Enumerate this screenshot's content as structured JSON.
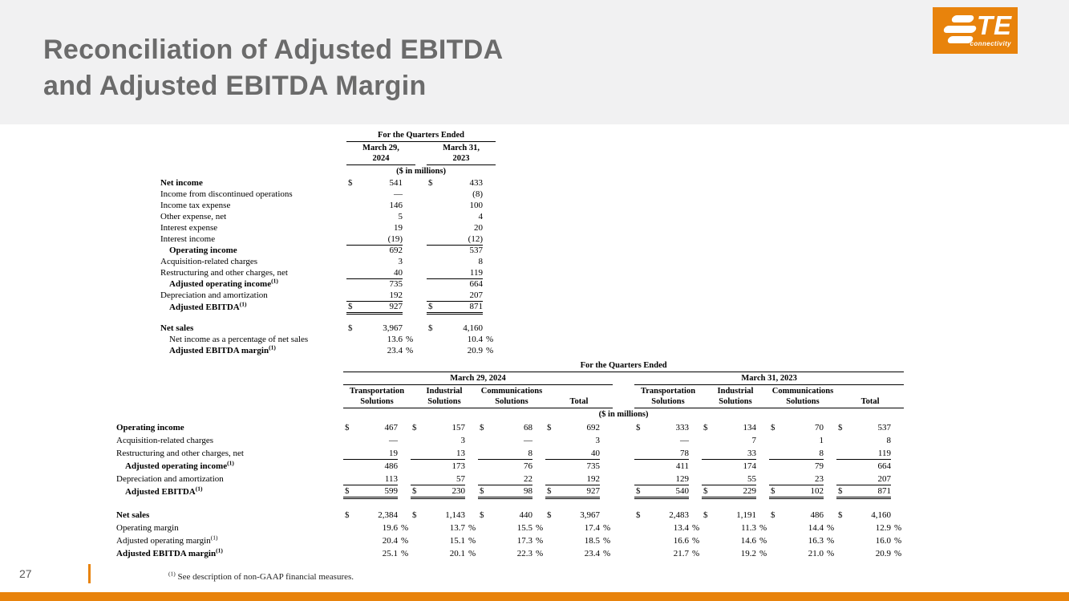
{
  "slide": {
    "title_line1": "Reconciliation of Adjusted EBITDA",
    "title_line2": "and Adjusted EBITDA Margin",
    "page_number": "27",
    "colors": {
      "orange": "#E8830C",
      "header_band": "#F1F1F2",
      "title_gray": "#6B6B6B"
    }
  },
  "logo": {
    "te": "TE",
    "sub": "connectivity"
  },
  "footnote": {
    "sup": "(1)",
    "text": " See description of non-GAAP financial measures."
  },
  "table1": {
    "header": {
      "quarters": "For the Quarters Ended",
      "period1": "March 29,\n2024",
      "period2": "March 31,\n2023",
      "units": "($ in millions)"
    },
    "rows": [
      {
        "label": "Net income",
        "bold": true,
        "dollar": true,
        "values": [
          "541",
          "433"
        ]
      },
      {
        "label": "Income from discontinued operations",
        "values": [
          "—",
          "(8)"
        ]
      },
      {
        "label": "Income tax expense",
        "values": [
          "146",
          "100"
        ]
      },
      {
        "label": "Other expense, net",
        "values": [
          "5",
          "4"
        ]
      },
      {
        "label": "Interest expense",
        "values": [
          "19",
          "20"
        ]
      },
      {
        "label": "Interest income",
        "underline": true,
        "values": [
          "(19)",
          "(12)"
        ]
      },
      {
        "label": "Operating income",
        "bold": true,
        "indent": true,
        "values": [
          "692",
          "537"
        ]
      },
      {
        "label": "Acquisition-related charges",
        "values": [
          "3",
          "8"
        ]
      },
      {
        "label": "Restructuring and other charges, net",
        "underline": true,
        "values": [
          "40",
          "119"
        ]
      },
      {
        "label": "Adjusted operating income",
        "sup": "(1)",
        "bold": true,
        "indent": true,
        "values": [
          "735",
          "664"
        ]
      },
      {
        "label": "Depreciation and amortization",
        "underline": true,
        "values": [
          "192",
          "207"
        ]
      },
      {
        "label": "Adjusted EBITDA",
        "sup": "(1)",
        "bold": true,
        "indent": true,
        "dollar": true,
        "double": true,
        "values": [
          "927",
          "871"
        ]
      },
      {
        "spacer": true
      },
      {
        "label": "Net sales",
        "bold": true,
        "dollar": true,
        "values": [
          "3,967",
          "4,160"
        ]
      },
      {
        "label": "Net income as a percentage of net sales",
        "indent": true,
        "pct": true,
        "values": [
          "13.6",
          "10.4"
        ]
      },
      {
        "label": "Adjusted EBITDA margin",
        "sup": "(1)",
        "bold": true,
        "indent": true,
        "pct": true,
        "values": [
          "23.4",
          "20.9"
        ]
      }
    ]
  },
  "table2": {
    "header": {
      "quarters": "For the Quarters Ended",
      "period1": "March 29, 2024",
      "period2": "March 31, 2023",
      "cols": [
        "Transportation\nSolutions",
        "Industrial\nSolutions",
        "Communications\nSolutions",
        "Total",
        "Transportation\nSolutions",
        "Industrial\nSolutions",
        "Communications\nSolutions",
        "Total"
      ],
      "units": "($ in millions)"
    },
    "rows": [
      {
        "label": "Operating income",
        "bold": true,
        "dollar": true,
        "values": [
          "467",
          "157",
          "68",
          "692",
          "333",
          "134",
          "70",
          "537"
        ]
      },
      {
        "label": "Acquisition-related charges",
        "values": [
          "—",
          "3",
          "—",
          "3",
          "—",
          "7",
          "1",
          "8"
        ]
      },
      {
        "label": "Restructuring and other charges, net",
        "underline": true,
        "values": [
          "19",
          "13",
          "8",
          "40",
          "78",
          "33",
          "8",
          "119"
        ]
      },
      {
        "label": "Adjusted operating income",
        "sup": "(1)",
        "bold": true,
        "indent": true,
        "values": [
          "486",
          "173",
          "76",
          "735",
          "411",
          "174",
          "79",
          "664"
        ]
      },
      {
        "label": "Depreciation and amortization",
        "underline": true,
        "values": [
          "113",
          "57",
          "22",
          "192",
          "129",
          "55",
          "23",
          "207"
        ]
      },
      {
        "label": "Adjusted EBITDA",
        "sup": "(1)",
        "bold": true,
        "indent": true,
        "dollar": true,
        "double": true,
        "values": [
          "599",
          "230",
          "98",
          "927",
          "540",
          "229",
          "102",
          "871"
        ]
      },
      {
        "spacer": true
      },
      {
        "label": "Net sales",
        "bold": true,
        "dollar": true,
        "values": [
          "2,384",
          "1,143",
          "440",
          "3,967",
          "2,483",
          "1,191",
          "486",
          "4,160"
        ]
      },
      {
        "label": "Operating margin",
        "pct": true,
        "values": [
          "19.6",
          "13.7",
          "15.5",
          "17.4",
          "13.4",
          "11.3",
          "14.4",
          "12.9"
        ]
      },
      {
        "label": "Adjusted operating margin",
        "sup": "(1)",
        "pct": true,
        "values": [
          "20.4",
          "15.1",
          "17.3",
          "18.5",
          "16.6",
          "14.6",
          "16.3",
          "16.0"
        ]
      },
      {
        "label": "Adjusted EBITDA margin",
        "sup": "(1)",
        "bold": true,
        "pct": true,
        "values": [
          "25.1",
          "20.1",
          "22.3",
          "23.4",
          "21.7",
          "19.2",
          "21.0",
          "20.9"
        ]
      }
    ]
  }
}
